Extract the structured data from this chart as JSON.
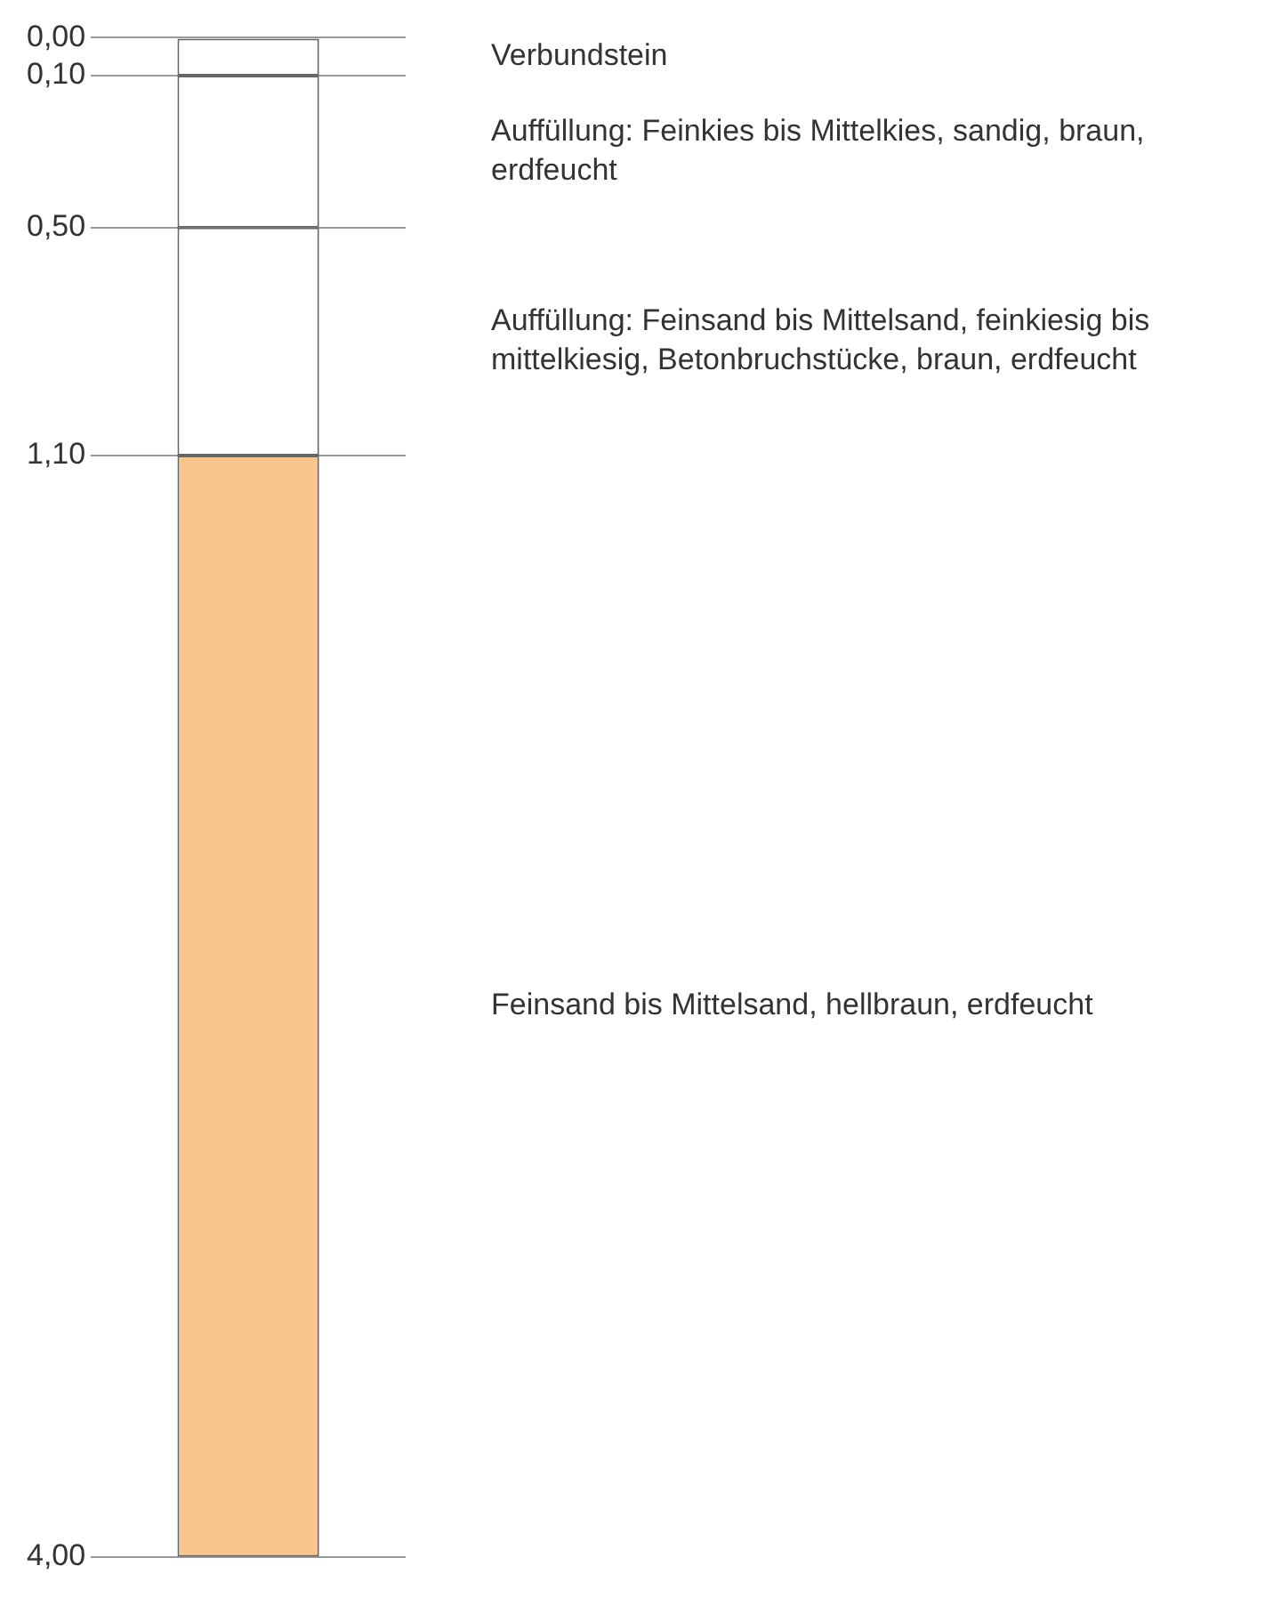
{
  "chart_data": {
    "type": "bar",
    "categories": [
      null
    ],
    "stacked": true,
    "series": [
      {
        "color": "#ffffff",
        "values": [
          0.1
        ]
      },
      {
        "color": "#ffffff",
        "values": [
          0.4
        ]
      },
      {
        "color": "#ffffff",
        "values": [
          0.6
        ]
      },
      {
        "color": "#f8c58d",
        "values": [
          2.9
        ]
      }
    ],
    "ylim": [
      4,
      0
    ],
    "yticks": [
      {
        "value": 0,
        "label": "0,00"
      },
      {
        "value": 0.1,
        "label": "0,10"
      },
      {
        "value": 0.5,
        "label": "0,50"
      },
      {
        "value": 1.1,
        "label": "1,10"
      },
      {
        "value": 4,
        "label": "4,00"
      }
    ],
    "grid": "y",
    "legend": false,
    "annotations": [
      "Verbundstein",
      "Auffüllung: Feinkies bis Mittelkies, sandig, braun, erdfeucht",
      "Auffüllung: Feinsand bis Mittelsand, feinkiesig bis mittelkiesig, Betonbruchstücke, braun, erdfeucht",
      "Feinsand bis Mittelsand, hellbraun, erdfeucht"
    ]
  }
}
